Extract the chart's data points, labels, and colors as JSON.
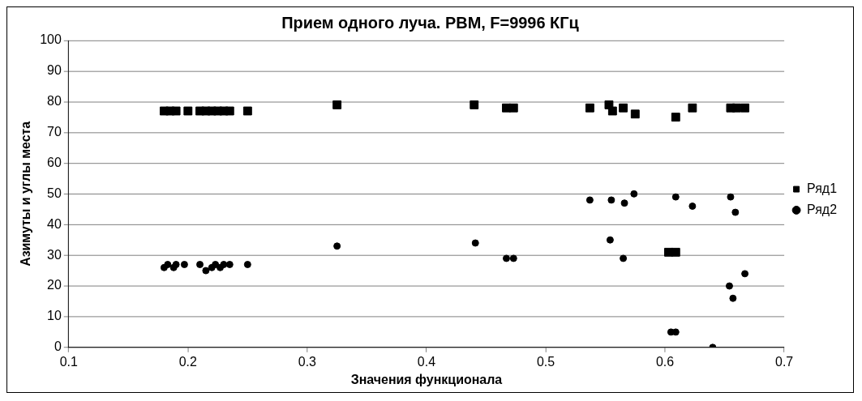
{
  "chart_data": {
    "type": "scatter",
    "title": "Прием одного луча. РВМ, F=9996 КГц",
    "xlabel": "Значения функционала",
    "ylabel": "Азимуты и углы места",
    "xlim": [
      0.1,
      0.7
    ],
    "xticks": [
      0.1,
      0.2,
      0.3,
      0.4,
      0.5,
      0.6,
      0.7
    ],
    "ylim": [
      0,
      100
    ],
    "yticks": [
      0,
      10,
      20,
      30,
      40,
      50,
      60,
      70,
      80,
      90,
      100
    ],
    "grid": "y",
    "legend": "right",
    "series": [
      {
        "name": "Ряд1",
        "color": "#000000",
        "marker": "square",
        "x": [
          0.18,
          0.185,
          0.19,
          0.2,
          0.21,
          0.215,
          0.22,
          0.225,
          0.23,
          0.235,
          0.25,
          0.325,
          0.44,
          0.467,
          0.473,
          0.537,
          0.553,
          0.556,
          0.565,
          0.575,
          0.609,
          0.623,
          0.655,
          0.66,
          0.667,
          0.603,
          0.609
        ],
        "values": [
          77,
          77,
          77,
          77,
          77,
          77,
          77,
          77,
          77,
          77,
          77,
          79,
          79,
          78,
          78,
          78,
          79,
          77,
          78,
          76,
          75,
          78,
          78,
          78,
          78,
          31,
          31
        ]
      },
      {
        "name": "Ряд2",
        "color": "#000000",
        "marker": "circle",
        "x": [
          0.18,
          0.183,
          0.188,
          0.19,
          0.197,
          0.21,
          0.215,
          0.22,
          0.223,
          0.227,
          0.23,
          0.235,
          0.25,
          0.325,
          0.441,
          0.467,
          0.473,
          0.537,
          0.555,
          0.554,
          0.566,
          0.565,
          0.574,
          0.609,
          0.605,
          0.609,
          0.623,
          0.64,
          0.655,
          0.659,
          0.654,
          0.657,
          0.667
        ],
        "values": [
          26,
          27,
          26,
          27,
          27,
          27,
          25,
          26,
          27,
          26,
          27,
          27,
          27,
          33,
          34,
          29,
          29,
          48,
          48,
          35,
          47,
          29,
          50,
          49,
          5,
          5,
          46,
          0,
          49,
          44,
          20,
          16,
          24
        ]
      }
    ]
  }
}
